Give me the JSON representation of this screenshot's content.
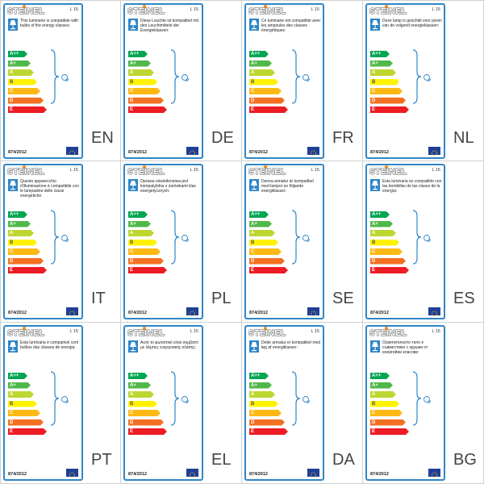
{
  "brand": "STEINEL",
  "model": "L 15",
  "regulation": "874/2012",
  "icons": {
    "lamp": "table-lamp-icon",
    "bulb": "light-bulb-icon",
    "brace": "curly-brace-icon",
    "eu": "eu-flag-icon"
  },
  "colors": {
    "frame": "#2f86c8",
    "eu_flag": "#1f3f96"
  },
  "classes": [
    {
      "text": "A++",
      "color": "#00a651"
    },
    {
      "text": "A+",
      "color": "#50b848"
    },
    {
      "text": "A",
      "color": "#bed630"
    },
    {
      "text": "B",
      "color": "#fff200"
    },
    {
      "text": "C",
      "color": "#fdb913"
    },
    {
      "text": "D",
      "color": "#f37021"
    },
    {
      "text": "E",
      "color": "#ed1c24"
    }
  ],
  "labels": [
    {
      "lang": "EN",
      "text": "This luminaire is compatible with bulbs of the energy classes:"
    },
    {
      "lang": "DE",
      "text": "Diese Leuchte ist kompatibel mit den Leuchtmitteln der Energieklassen:"
    },
    {
      "lang": "FR",
      "text": "Ce luminaire est compatible avec les ampoules des classes énergétiques:"
    },
    {
      "lang": "NL",
      "text": "Deze lamp is geschikt voor peren van de volgend energieklassen:"
    },
    {
      "lang": "IT",
      "text": "Questo apparecchio d'illuminazione è compatibile con le lampadine delle classi energetiche:"
    },
    {
      "lang": "PL",
      "text": "Oprawa oświetleniowa jest kompatybilna z żarówkami klas energetycznych:"
    },
    {
      "lang": "SE",
      "text": "Denna armatur är kompatibel med lampor av följande energiklasser:"
    },
    {
      "lang": "ES",
      "text": "Esta luminaria es compatible con las bombillas de las clases de la energía:"
    },
    {
      "lang": "PT",
      "text": "Esta luminária é compatível com bulbos das classes de energia:"
    },
    {
      "lang": "EL",
      "text": "Αυτό το φωτιστικό είναι συμβατό με λάμπες ενεργειακής κλάσης:"
    },
    {
      "lang": "DA",
      "text": "Dette armatur er kompatibel med løg af energiklasser:"
    },
    {
      "lang": "BG",
      "text": "Осветителното тяло е съвместимо с крушки от енергийни класове:"
    }
  ]
}
